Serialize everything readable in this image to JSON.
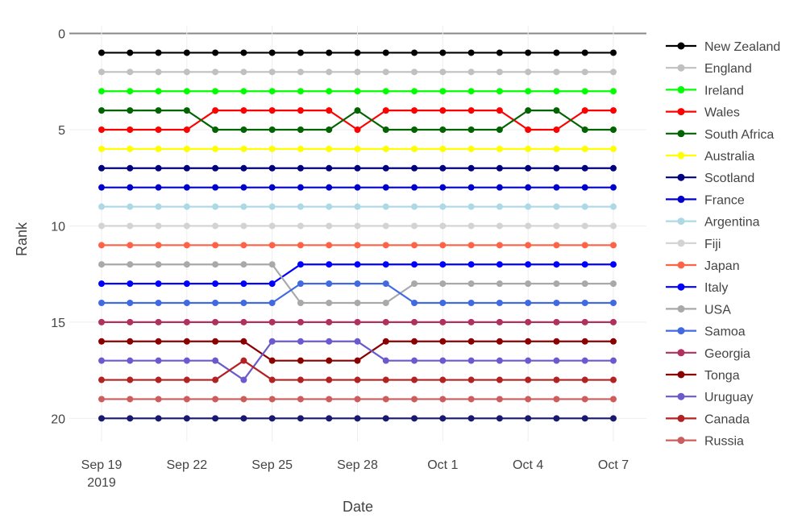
{
  "chart_data": {
    "type": "line",
    "xlabel": "Date",
    "ylabel": "Rank",
    "x": [
      "2019-09-19",
      "2019-09-20",
      "2019-09-21",
      "2019-09-22",
      "2019-09-23",
      "2019-09-24",
      "2019-09-25",
      "2019-09-26",
      "2019-09-27",
      "2019-09-28",
      "2019-09-29",
      "2019-09-30",
      "2019-10-01",
      "2019-10-02",
      "2019-10-03",
      "2019-10-04",
      "2019-10-05",
      "2019-10-06",
      "2019-10-07"
    ],
    "xticks": [
      {
        "date": "2019-09-19",
        "label": "Sep 19",
        "label2": "2019"
      },
      {
        "date": "2019-09-22",
        "label": "Sep 22"
      },
      {
        "date": "2019-09-25",
        "label": "Sep 25"
      },
      {
        "date": "2019-09-28",
        "label": "Sep 28"
      },
      {
        "date": "2019-10-01",
        "label": "Oct 1"
      },
      {
        "date": "2019-10-04",
        "label": "Oct 4"
      },
      {
        "date": "2019-10-07",
        "label": "Oct 7"
      }
    ],
    "yticks": [
      0,
      5,
      10,
      15,
      20
    ],
    "ylim": [
      21.2,
      -0.4
    ],
    "y_reversed": true,
    "grid": true,
    "legend_position": "right",
    "series": [
      {
        "name": "New Zealand",
        "color": "#000000",
        "values": [
          1,
          1,
          1,
          1,
          1,
          1,
          1,
          1,
          1,
          1,
          1,
          1,
          1,
          1,
          1,
          1,
          1,
          1,
          1
        ]
      },
      {
        "name": "England",
        "color": "#c0c0c0",
        "values": [
          2,
          2,
          2,
          2,
          2,
          2,
          2,
          2,
          2,
          2,
          2,
          2,
          2,
          2,
          2,
          2,
          2,
          2,
          2
        ]
      },
      {
        "name": "Ireland",
        "color": "#00ff00",
        "values": [
          3,
          3,
          3,
          3,
          3,
          3,
          3,
          3,
          3,
          3,
          3,
          3,
          3,
          3,
          3,
          3,
          3,
          3,
          3
        ]
      },
      {
        "name": "Wales",
        "color": "#ff0000",
        "values": [
          5,
          5,
          5,
          5,
          4,
          4,
          4,
          4,
          4,
          5,
          4,
          4,
          4,
          4,
          4,
          5,
          5,
          4,
          4
        ]
      },
      {
        "name": "South Africa",
        "color": "#006400",
        "values": [
          4,
          4,
          4,
          4,
          5,
          5,
          5,
          5,
          5,
          4,
          5,
          5,
          5,
          5,
          5,
          4,
          4,
          5,
          5
        ]
      },
      {
        "name": "Australia",
        "color": "#ffff00",
        "values": [
          6,
          6,
          6,
          6,
          6,
          6,
          6,
          6,
          6,
          6,
          6,
          6,
          6,
          6,
          6,
          6,
          6,
          6,
          6
        ]
      },
      {
        "name": "Scotland",
        "color": "#000080",
        "values": [
          7,
          7,
          7,
          7,
          7,
          7,
          7,
          7,
          7,
          7,
          7,
          7,
          7,
          7,
          7,
          7,
          7,
          7,
          7
        ]
      },
      {
        "name": "France",
        "color": "#0000cd",
        "values": [
          8,
          8,
          8,
          8,
          8,
          8,
          8,
          8,
          8,
          8,
          8,
          8,
          8,
          8,
          8,
          8,
          8,
          8,
          8
        ]
      },
      {
        "name": "Argentina",
        "color": "#add8e6",
        "values": [
          9,
          9,
          9,
          9,
          9,
          9,
          9,
          9,
          9,
          9,
          9,
          9,
          9,
          9,
          9,
          9,
          9,
          9,
          9
        ]
      },
      {
        "name": "Fiji",
        "color": "#d3d3d3",
        "values": [
          10,
          10,
          10,
          10,
          10,
          10,
          10,
          10,
          10,
          10,
          10,
          10,
          10,
          10,
          10,
          10,
          10,
          10,
          10
        ]
      },
      {
        "name": "Japan",
        "color": "#ff6347",
        "values": [
          11,
          11,
          11,
          11,
          11,
          11,
          11,
          11,
          11,
          11,
          11,
          11,
          11,
          11,
          11,
          11,
          11,
          11,
          11
        ]
      },
      {
        "name": "Italy",
        "color": "#0000ff",
        "values": [
          13,
          13,
          13,
          13,
          13,
          13,
          13,
          12,
          12,
          12,
          12,
          12,
          12,
          12,
          12,
          12,
          12,
          12,
          12
        ]
      },
      {
        "name": "USA",
        "color": "#a9a9a9",
        "values": [
          12,
          12,
          12,
          12,
          12,
          12,
          12,
          14,
          14,
          14,
          14,
          13,
          13,
          13,
          13,
          13,
          13,
          13,
          13
        ]
      },
      {
        "name": "Samoa",
        "color": "#4169e1",
        "values": [
          14,
          14,
          14,
          14,
          14,
          14,
          14,
          13,
          13,
          13,
          13,
          14,
          14,
          14,
          14,
          14,
          14,
          14,
          14
        ]
      },
      {
        "name": "Georgia",
        "color": "#b03060",
        "values": [
          15,
          15,
          15,
          15,
          15,
          15,
          15,
          15,
          15,
          15,
          15,
          15,
          15,
          15,
          15,
          15,
          15,
          15,
          15
        ]
      },
      {
        "name": "Tonga",
        "color": "#8b0000",
        "values": [
          16,
          16,
          16,
          16,
          16,
          16,
          17,
          17,
          17,
          17,
          16,
          16,
          16,
          16,
          16,
          16,
          16,
          16,
          16
        ]
      },
      {
        "name": "Uruguay",
        "color": "#6a5acd",
        "values": [
          17,
          17,
          17,
          17,
          17,
          18,
          16,
          16,
          16,
          16,
          17,
          17,
          17,
          17,
          17,
          17,
          17,
          17,
          17
        ]
      },
      {
        "name": "Canada",
        "color": "#b22222",
        "values": [
          18,
          18,
          18,
          18,
          18,
          17,
          18,
          18,
          18,
          18,
          18,
          18,
          18,
          18,
          18,
          18,
          18,
          18,
          18
        ]
      },
      {
        "name": "Russia",
        "color": "#cd5c5c",
        "values": [
          19,
          19,
          19,
          19,
          19,
          19,
          19,
          19,
          19,
          19,
          19,
          19,
          19,
          19,
          19,
          19,
          19,
          19,
          19
        ]
      },
      {
        "name": "",
        "color": "#191970",
        "values": [
          20,
          20,
          20,
          20,
          20,
          20,
          20,
          20,
          20,
          20,
          20,
          20,
          20,
          20,
          20,
          20,
          20,
          20,
          20
        ]
      }
    ]
  }
}
